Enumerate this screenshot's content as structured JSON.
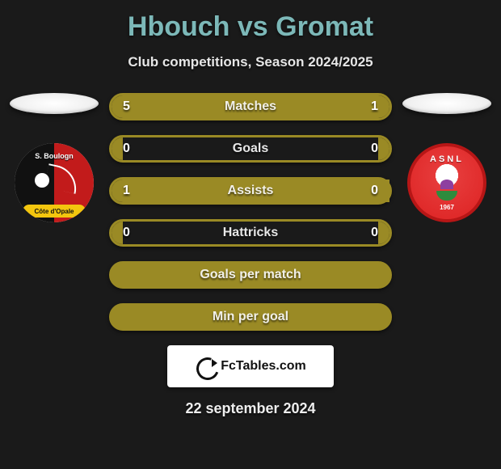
{
  "header": {
    "title": "Hbouch vs Gromat",
    "subtitle": "Club competitions, Season 2024/2025",
    "title_color": "#7cb8b8"
  },
  "players": {
    "left": {
      "club_top_text": "S. Boulogn",
      "club_bottom_text": "Côte d'Opale"
    },
    "right": {
      "club_ring_text": "ASNL",
      "club_year": "1967"
    }
  },
  "bars": [
    {
      "label": "Matches",
      "left": "5",
      "right": "1",
      "left_fill_pct": 83,
      "right_fill_pct": 17,
      "single": false
    },
    {
      "label": "Goals",
      "left": "0",
      "right": "0",
      "left_fill_pct": 4,
      "right_fill_pct": 4,
      "single": false
    },
    {
      "label": "Assists",
      "left": "1",
      "right": "0",
      "left_fill_pct": 100,
      "right_fill_pct": 0,
      "single": false
    },
    {
      "label": "Hattricks",
      "left": "0",
      "right": "0",
      "left_fill_pct": 4,
      "right_fill_pct": 4,
      "single": false
    },
    {
      "label": "Goals per match",
      "left": "",
      "right": "",
      "left_fill_pct": 100,
      "right_fill_pct": 0,
      "single": true
    },
    {
      "label": "Min per goal",
      "left": "",
      "right": "",
      "left_fill_pct": 100,
      "right_fill_pct": 0,
      "single": true
    }
  ],
  "bar_color": "#9a8a25",
  "footer": {
    "brand": "FcTables.com",
    "date": "22 september 2024"
  }
}
